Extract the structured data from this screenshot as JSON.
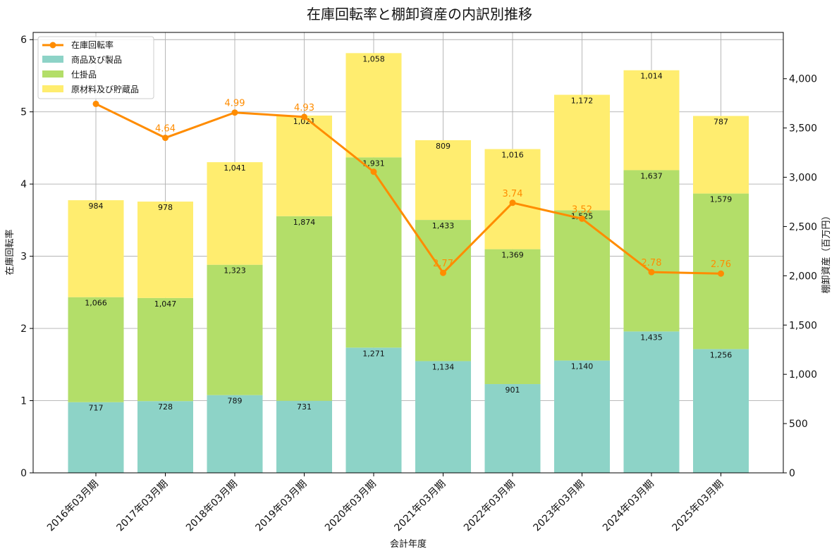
{
  "chart_data": {
    "type": "bar",
    "title": "在庫回転率と棚卸資産の内訳別推移",
    "xlabel": "会計年度",
    "ylabel_left": "在庫回転率",
    "ylabel_right": "棚卸資産（百万円）",
    "ylim_left": [
      0,
      6.1
    ],
    "ylim_right": [
      0,
      4470
    ],
    "left_ticks": [
      "0",
      "1",
      "2",
      "3",
      "4",
      "5",
      "6"
    ],
    "right_ticks": [
      "0",
      "500",
      "1,000",
      "1,500",
      "2,000",
      "2,500",
      "3,000",
      "3,500",
      "4,000"
    ],
    "categories": [
      "2016年03月期",
      "2017年03月期",
      "2018年03月期",
      "2019年03月期",
      "2020年03月期",
      "2021年03月期",
      "2022年03月期",
      "2023年03月期",
      "2024年03月期",
      "2025年03月期"
    ],
    "series": [
      {
        "name": "商品及び製品",
        "type": "bar",
        "axis": "right",
        "color": "#8dd3c7",
        "values": [
          717,
          728,
          789,
          731,
          1271,
          1134,
          901,
          1140,
          1435,
          1256
        ],
        "labels": [
          "717",
          "728",
          "789",
          "731",
          "1,271",
          "1,134",
          "901",
          "1,140",
          "1,435",
          "1,256"
        ]
      },
      {
        "name": "仕掛品",
        "type": "bar",
        "axis": "right",
        "color": "#b3de69",
        "values": [
          1066,
          1047,
          1323,
          1874,
          1931,
          1433,
          1369,
          1525,
          1637,
          1579
        ],
        "labels": [
          "1,066",
          "1,047",
          "1,323",
          "1,874",
          "1,931",
          "1,433",
          "1,369",
          "1,525",
          "1,637",
          "1,579"
        ]
      },
      {
        "name": "原材料及び貯蔵品",
        "type": "bar",
        "axis": "right",
        "color": "#ffed6f",
        "values": [
          984,
          978,
          1041,
          1021,
          1058,
          809,
          1016,
          1172,
          1014,
          787
        ],
        "labels": [
          "984",
          "978",
          "1,041",
          "1,021",
          "1,058",
          "809",
          "1,016",
          "1,172",
          "1,014",
          "787"
        ]
      },
      {
        "name": "在庫回転率",
        "type": "line",
        "axis": "left",
        "color": "#ff8c00",
        "values": [
          5.11,
          4.64,
          4.99,
          4.93,
          4.17,
          2.77,
          3.74,
          3.52,
          2.78,
          2.76
        ],
        "labels": [
          "",
          "4.64",
          "4.99",
          "4.93",
          "",
          "2.77",
          "3.74",
          "3.52",
          "2.78",
          "2.76"
        ]
      }
    ],
    "legend_position": "top-left",
    "grid": true
  }
}
